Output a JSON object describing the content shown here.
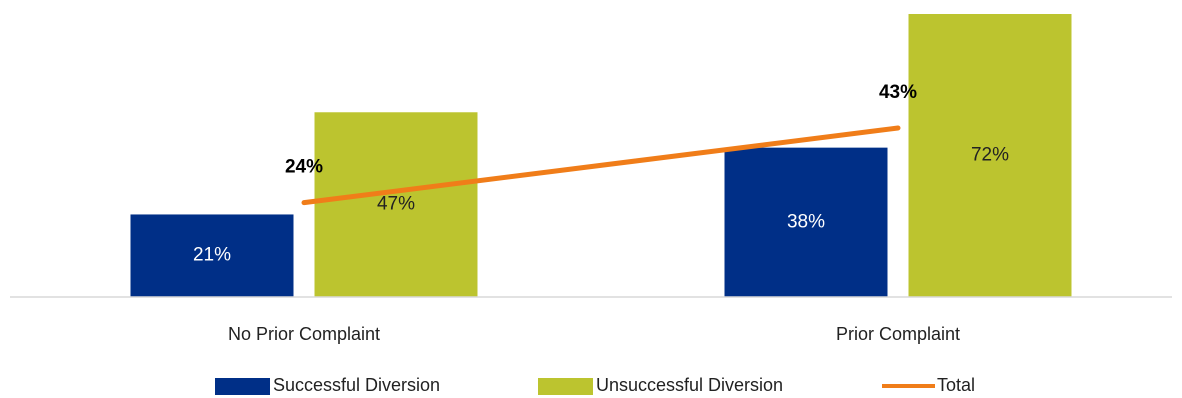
{
  "chart_data": {
    "type": "bar",
    "categories": [
      "No Prior Complaint",
      "Prior Complaint"
    ],
    "series": [
      {
        "name": "Successful Diversion",
        "type": "bar",
        "values": [
          21,
          38
        ],
        "labels": [
          "21%",
          "38%"
        ],
        "color": "#002f87",
        "label_color": "#ffffff"
      },
      {
        "name": "Unsuccessful Diversion",
        "type": "bar",
        "values": [
          47,
          72
        ],
        "labels": [
          "47%",
          "72%"
        ],
        "color": "#bcc42f",
        "label_color": "#222222"
      },
      {
        "name": "Total",
        "type": "line",
        "values": [
          24,
          43
        ],
        "labels": [
          "24%",
          "43%"
        ],
        "color": "#f07d19"
      }
    ],
    "ylim": [
      0,
      72
    ],
    "legend_position": "bottom",
    "grid": false,
    "title": "",
    "xlabel": "",
    "ylabel": ""
  }
}
